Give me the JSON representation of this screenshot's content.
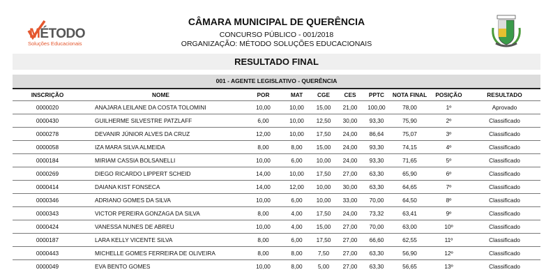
{
  "header": {
    "title": "CÂMARA MUNICIPAL DE QUERÊNCIA",
    "subtitle": "CONCURSO PÚBLICO - 001/2018",
    "organization": "ORGANIZAÇÃO: MÉTODO SOLUÇÕES EDUCACIONAIS",
    "logo_text": "MÉTODO",
    "logo_tagline": "Soluções Educacionais"
  },
  "result_title": "RESULTADO FINAL",
  "section_title": "001 - AGENTE LEGISLATIVO - QUERÊNCIA",
  "table": {
    "columns": [
      "INSCRIÇÃO",
      "NOME",
      "POR",
      "MAT",
      "CGE",
      "CES",
      "PPTC",
      "NOTA FINAL",
      "POSIÇÃO",
      "RESULTADO"
    ],
    "rows": [
      [
        "0000020",
        "ANAJARA LEILANE DA COSTA TOLOMINI",
        "10,00",
        "10,00",
        "15,00",
        "21,00",
        "100,00",
        "78,00",
        "1º",
        "Aprovado"
      ],
      [
        "0000430",
        "GUILHERME SILVESTRE PATZLAFF",
        "6,00",
        "10,00",
        "12,50",
        "30,00",
        "93,30",
        "75,90",
        "2º",
        "Classificado"
      ],
      [
        "0000278",
        "DEVANIR JÚNIOR ALVES DA CRUZ",
        "12,00",
        "10,00",
        "17,50",
        "24,00",
        "86,64",
        "75,07",
        "3º",
        "Classificado"
      ],
      [
        "0000058",
        "IZA MARA SILVA ALMEIDA",
        "8,00",
        "8,00",
        "15,00",
        "24,00",
        "93,30",
        "74,15",
        "4º",
        "Classificado"
      ],
      [
        "0000184",
        "MIRIAM CASSIA BOLSANELLI",
        "10,00",
        "6,00",
        "10,00",
        "24,00",
        "93,30",
        "71,65",
        "5º",
        "Classificado"
      ],
      [
        "0000269",
        "DIEGO RICARDO LIPPERT SCHEID",
        "14,00",
        "10,00",
        "17,50",
        "27,00",
        "63,30",
        "65,90",
        "6º",
        "Classificado"
      ],
      [
        "0000414",
        "DAIANA KIST FONSECA",
        "14,00",
        "12,00",
        "10,00",
        "30,00",
        "63,30",
        "64,65",
        "7º",
        "Classificado"
      ],
      [
        "0000346",
        "ADRIANO GOMES DA SILVA",
        "10,00",
        "6,00",
        "10,00",
        "33,00",
        "70,00",
        "64,50",
        "8º",
        "Classificado"
      ],
      [
        "0000343",
        "VICTOR PEREIRA GONZAGA DA SILVA",
        "8,00",
        "4,00",
        "17,50",
        "24,00",
        "73,32",
        "63,41",
        "9º",
        "Classificado"
      ],
      [
        "0000424",
        "VANESSA NUNES DE ABREU",
        "10,00",
        "4,00",
        "15,00",
        "27,00",
        "70,00",
        "63,00",
        "10º",
        "Classificado"
      ],
      [
        "0000187",
        "LARA KELLY VICENTE SILVA",
        "8,00",
        "6,00",
        "17,50",
        "27,00",
        "66,60",
        "62,55",
        "11º",
        "Classificado"
      ],
      [
        "0000443",
        "MICHELLE GOMES FERREIRA DE OLIVEIRA",
        "8,00",
        "8,00",
        "7,50",
        "27,00",
        "63,30",
        "56,90",
        "12º",
        "Classificado"
      ],
      [
        "0000049",
        "EVA BENTO GOMES",
        "10,00",
        "8,00",
        "5,00",
        "27,00",
        "63,30",
        "56,65",
        "13º",
        "Classificado"
      ]
    ]
  }
}
